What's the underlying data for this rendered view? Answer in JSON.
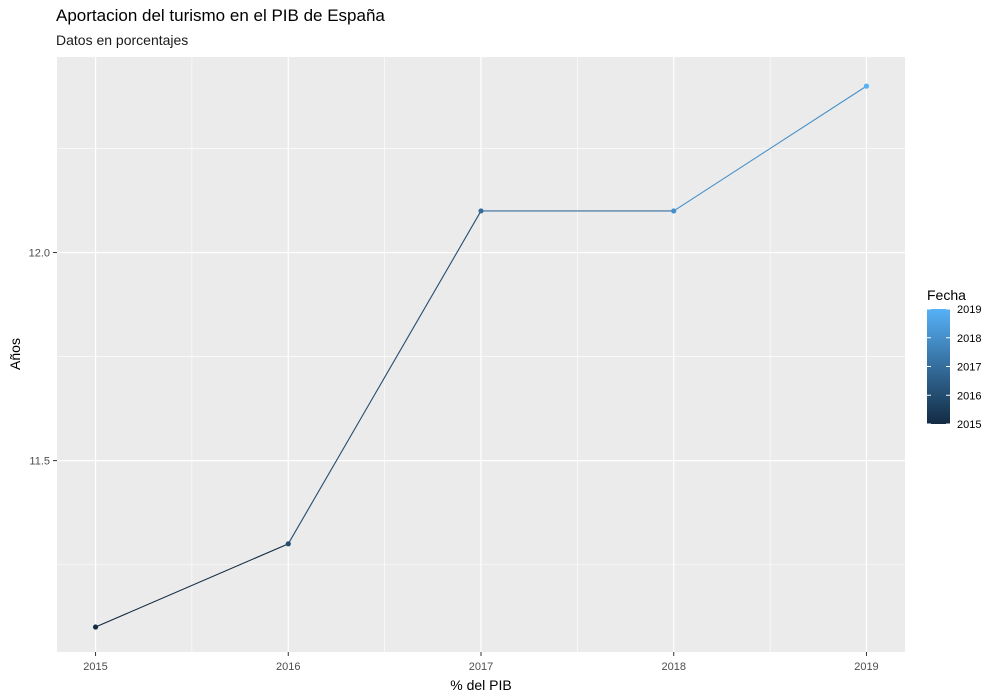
{
  "chart_data": {
    "type": "line",
    "title": "Aportacion del turismo en el PIB de España",
    "subtitle": "Datos en porcentajes",
    "xlabel": "% del PIB",
    "ylabel": "Años",
    "x": [
      2015,
      2016,
      2017,
      2018,
      2019
    ],
    "series": [
      {
        "values": [
          11.1,
          11.3,
          12.1,
          12.1,
          12.4
        ]
      }
    ],
    "x_ticks": [
      "2015",
      "2016",
      "2017",
      "2018",
      "2019"
    ],
    "y_ticks": [
      "11.5",
      "12.0"
    ],
    "xlim": [
      2014.8,
      2019.2
    ],
    "ylim": [
      11.04,
      12.47
    ],
    "grid": true,
    "legend": {
      "title": "Fecha",
      "placement": "right",
      "labels": [
        "2019",
        "2018",
        "2017",
        "2016",
        "2015"
      ],
      "range": [
        2015,
        2019
      ]
    },
    "colors": {
      "panel_background": "#ebebeb",
      "grid": "#ffffff",
      "gradient_low": "#132b43",
      "gradient_high": "#56b1f7"
    }
  }
}
